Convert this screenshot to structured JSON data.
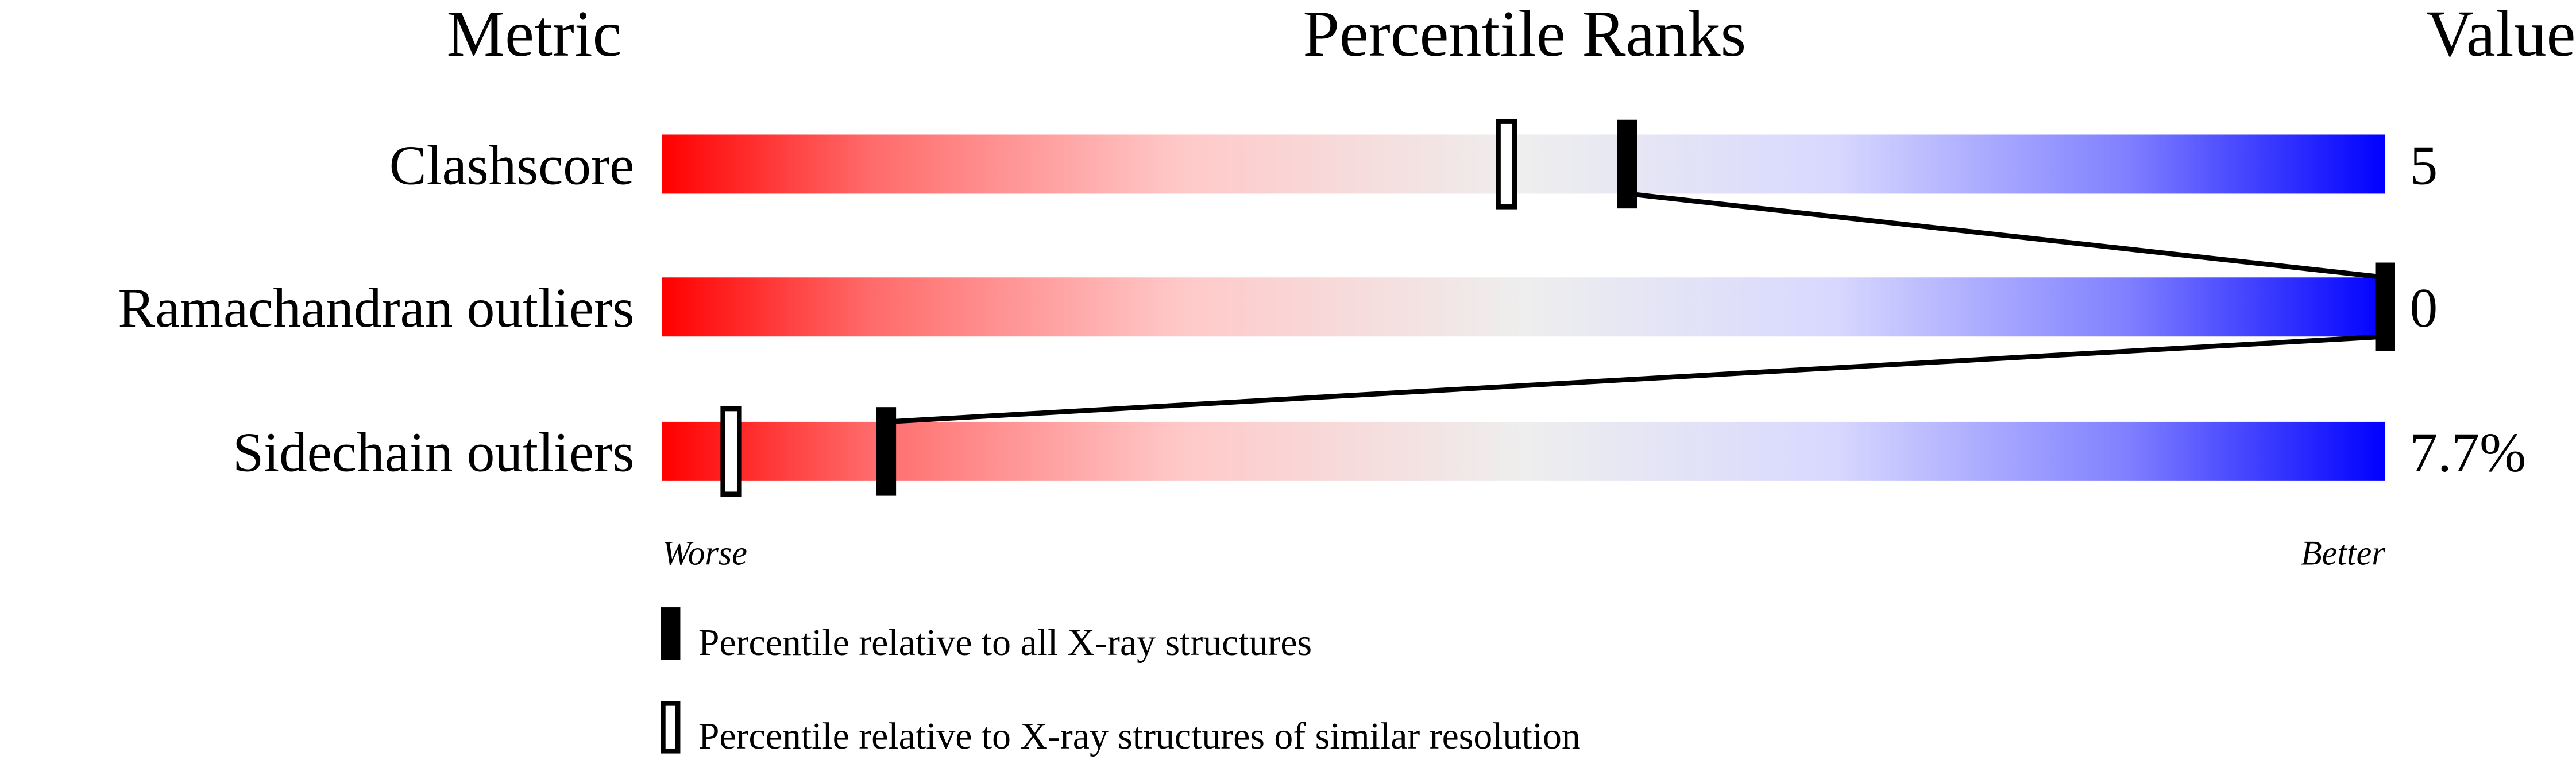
{
  "chart_data": {
    "type": "percentile-slider",
    "headers": {
      "metric": "Metric",
      "percentile": "Percentile Ranks",
      "value": "Value"
    },
    "xlim": [
      0,
      100
    ],
    "scale_labels": {
      "low": "Worse",
      "high": "Better"
    },
    "colors": {
      "worse": "#ff0000",
      "mid": "#eeeeee",
      "better": "#0000ff",
      "marker": "#000000"
    },
    "metrics": [
      {
        "name": "Clashscore",
        "value": "5",
        "percentile_all": 56,
        "percentile_similar": 49
      },
      {
        "name": "Ramachandran outliers",
        "value": "0",
        "percentile_all": 100,
        "percentile_similar": null
      },
      {
        "name": "Sidechain outliers",
        "value": "7.7%",
        "percentile_all": 13,
        "percentile_similar": 4
      }
    ],
    "legend": [
      {
        "marker": "filled",
        "label": "Percentile relative to all X-ray structures"
      },
      {
        "marker": "open",
        "label": "Percentile relative to X-ray structures of similar resolution"
      }
    ]
  }
}
